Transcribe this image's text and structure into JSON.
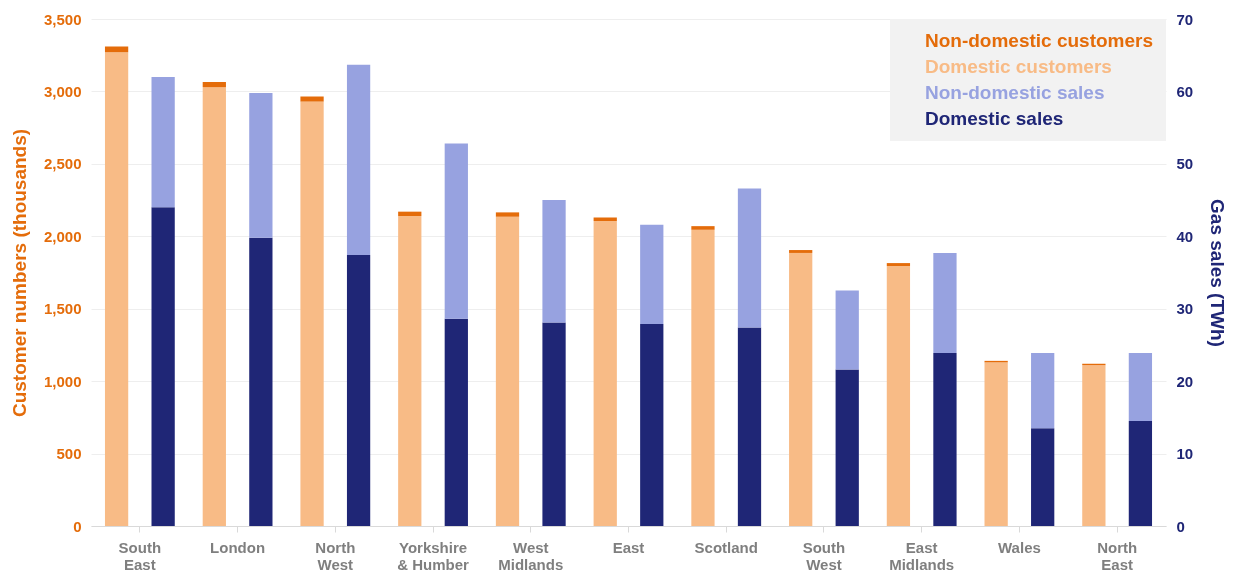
{
  "chart_data": {
    "type": "bar",
    "stacked": true,
    "ylabel": "Customer numbers (thousands)",
    "y2label": "Gas sales (TWh)",
    "categories": [
      "South East",
      "London",
      "North West",
      "Yorkshire & Humber",
      "West Midlands",
      "East",
      "Scotland",
      "South West",
      "East Midlands",
      "Wales",
      "North East"
    ],
    "series": [
      {
        "name": "Domestic customers",
        "color": "#f8bb86",
        "axis": "y",
        "values": [
          3270,
          3030,
          2930,
          2140,
          2135,
          2105,
          2045,
          1885,
          1795,
          1130,
          1110
        ]
      },
      {
        "name": "Non-domestic customers",
        "color": "#e46c0a",
        "axis": "y",
        "values": [
          40,
          35,
          35,
          30,
          30,
          25,
          25,
          20,
          20,
          10,
          10
        ]
      },
      {
        "name": "Domestic sales",
        "color": "#1f2676",
        "axis": "y2",
        "values": [
          44.0,
          39.8,
          37.4,
          28.6,
          28.1,
          27.9,
          27.4,
          21.6,
          23.9,
          13.5,
          14.5
        ]
      },
      {
        "name": "Non-domestic sales",
        "color": "#97a2e0",
        "axis": "y2",
        "values": [
          18.0,
          20.0,
          26.3,
          24.2,
          16.9,
          13.7,
          19.2,
          10.9,
          13.8,
          10.4,
          9.4
        ]
      }
    ],
    "ylim": [
      0,
      3500
    ],
    "yticks": [
      0,
      {
        "value": 500,
        "label": "500"
      },
      {
        "value": 1000,
        "label": "1,000"
      },
      {
        "value": 1500,
        "label": "1,500"
      },
      {
        "value": 2000,
        "label": "2,000"
      },
      {
        "value": 2500,
        "label": "2,500"
      },
      {
        "value": 3000,
        "label": "3,000"
      },
      {
        "value": 3500,
        "label": "3,500"
      }
    ],
    "y2lim": [
      0,
      70
    ],
    "y2ticks": [
      0,
      10,
      20,
      30,
      40,
      50,
      60,
      70
    ],
    "grid": "y",
    "legend": "top right"
  }
}
